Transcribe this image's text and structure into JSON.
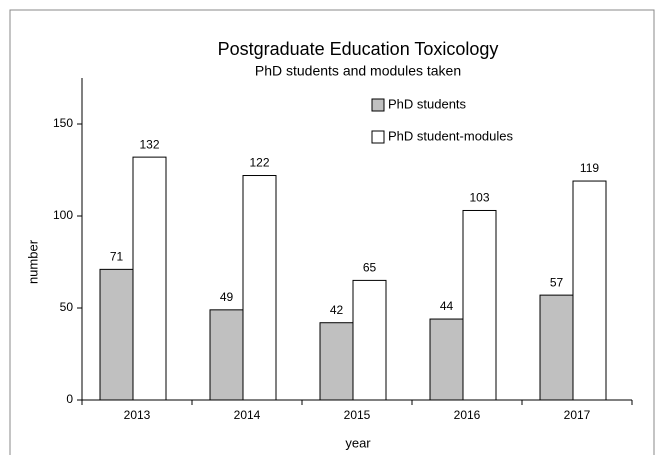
{
  "chart_data": {
    "type": "bar",
    "title": "Postgraduate Education Toxicology",
    "subtitle": "PhD students and modules taken",
    "x_label": "year",
    "y_label": "number",
    "categories": [
      "2013",
      "2014",
      "2015",
      "2016",
      "2017"
    ],
    "series": [
      {
        "name": "PhD students",
        "color": "#c0c0c0",
        "values": [
          71,
          49,
          42,
          44,
          57
        ]
      },
      {
        "name": "PhD student-modules",
        "color": "#ffffff",
        "values": [
          132,
          122,
          65,
          103,
          119
        ]
      }
    ],
    "ylim": [
      0,
      175
    ],
    "yticks": [
      0,
      50,
      100,
      150
    ],
    "legend": "top-center"
  }
}
